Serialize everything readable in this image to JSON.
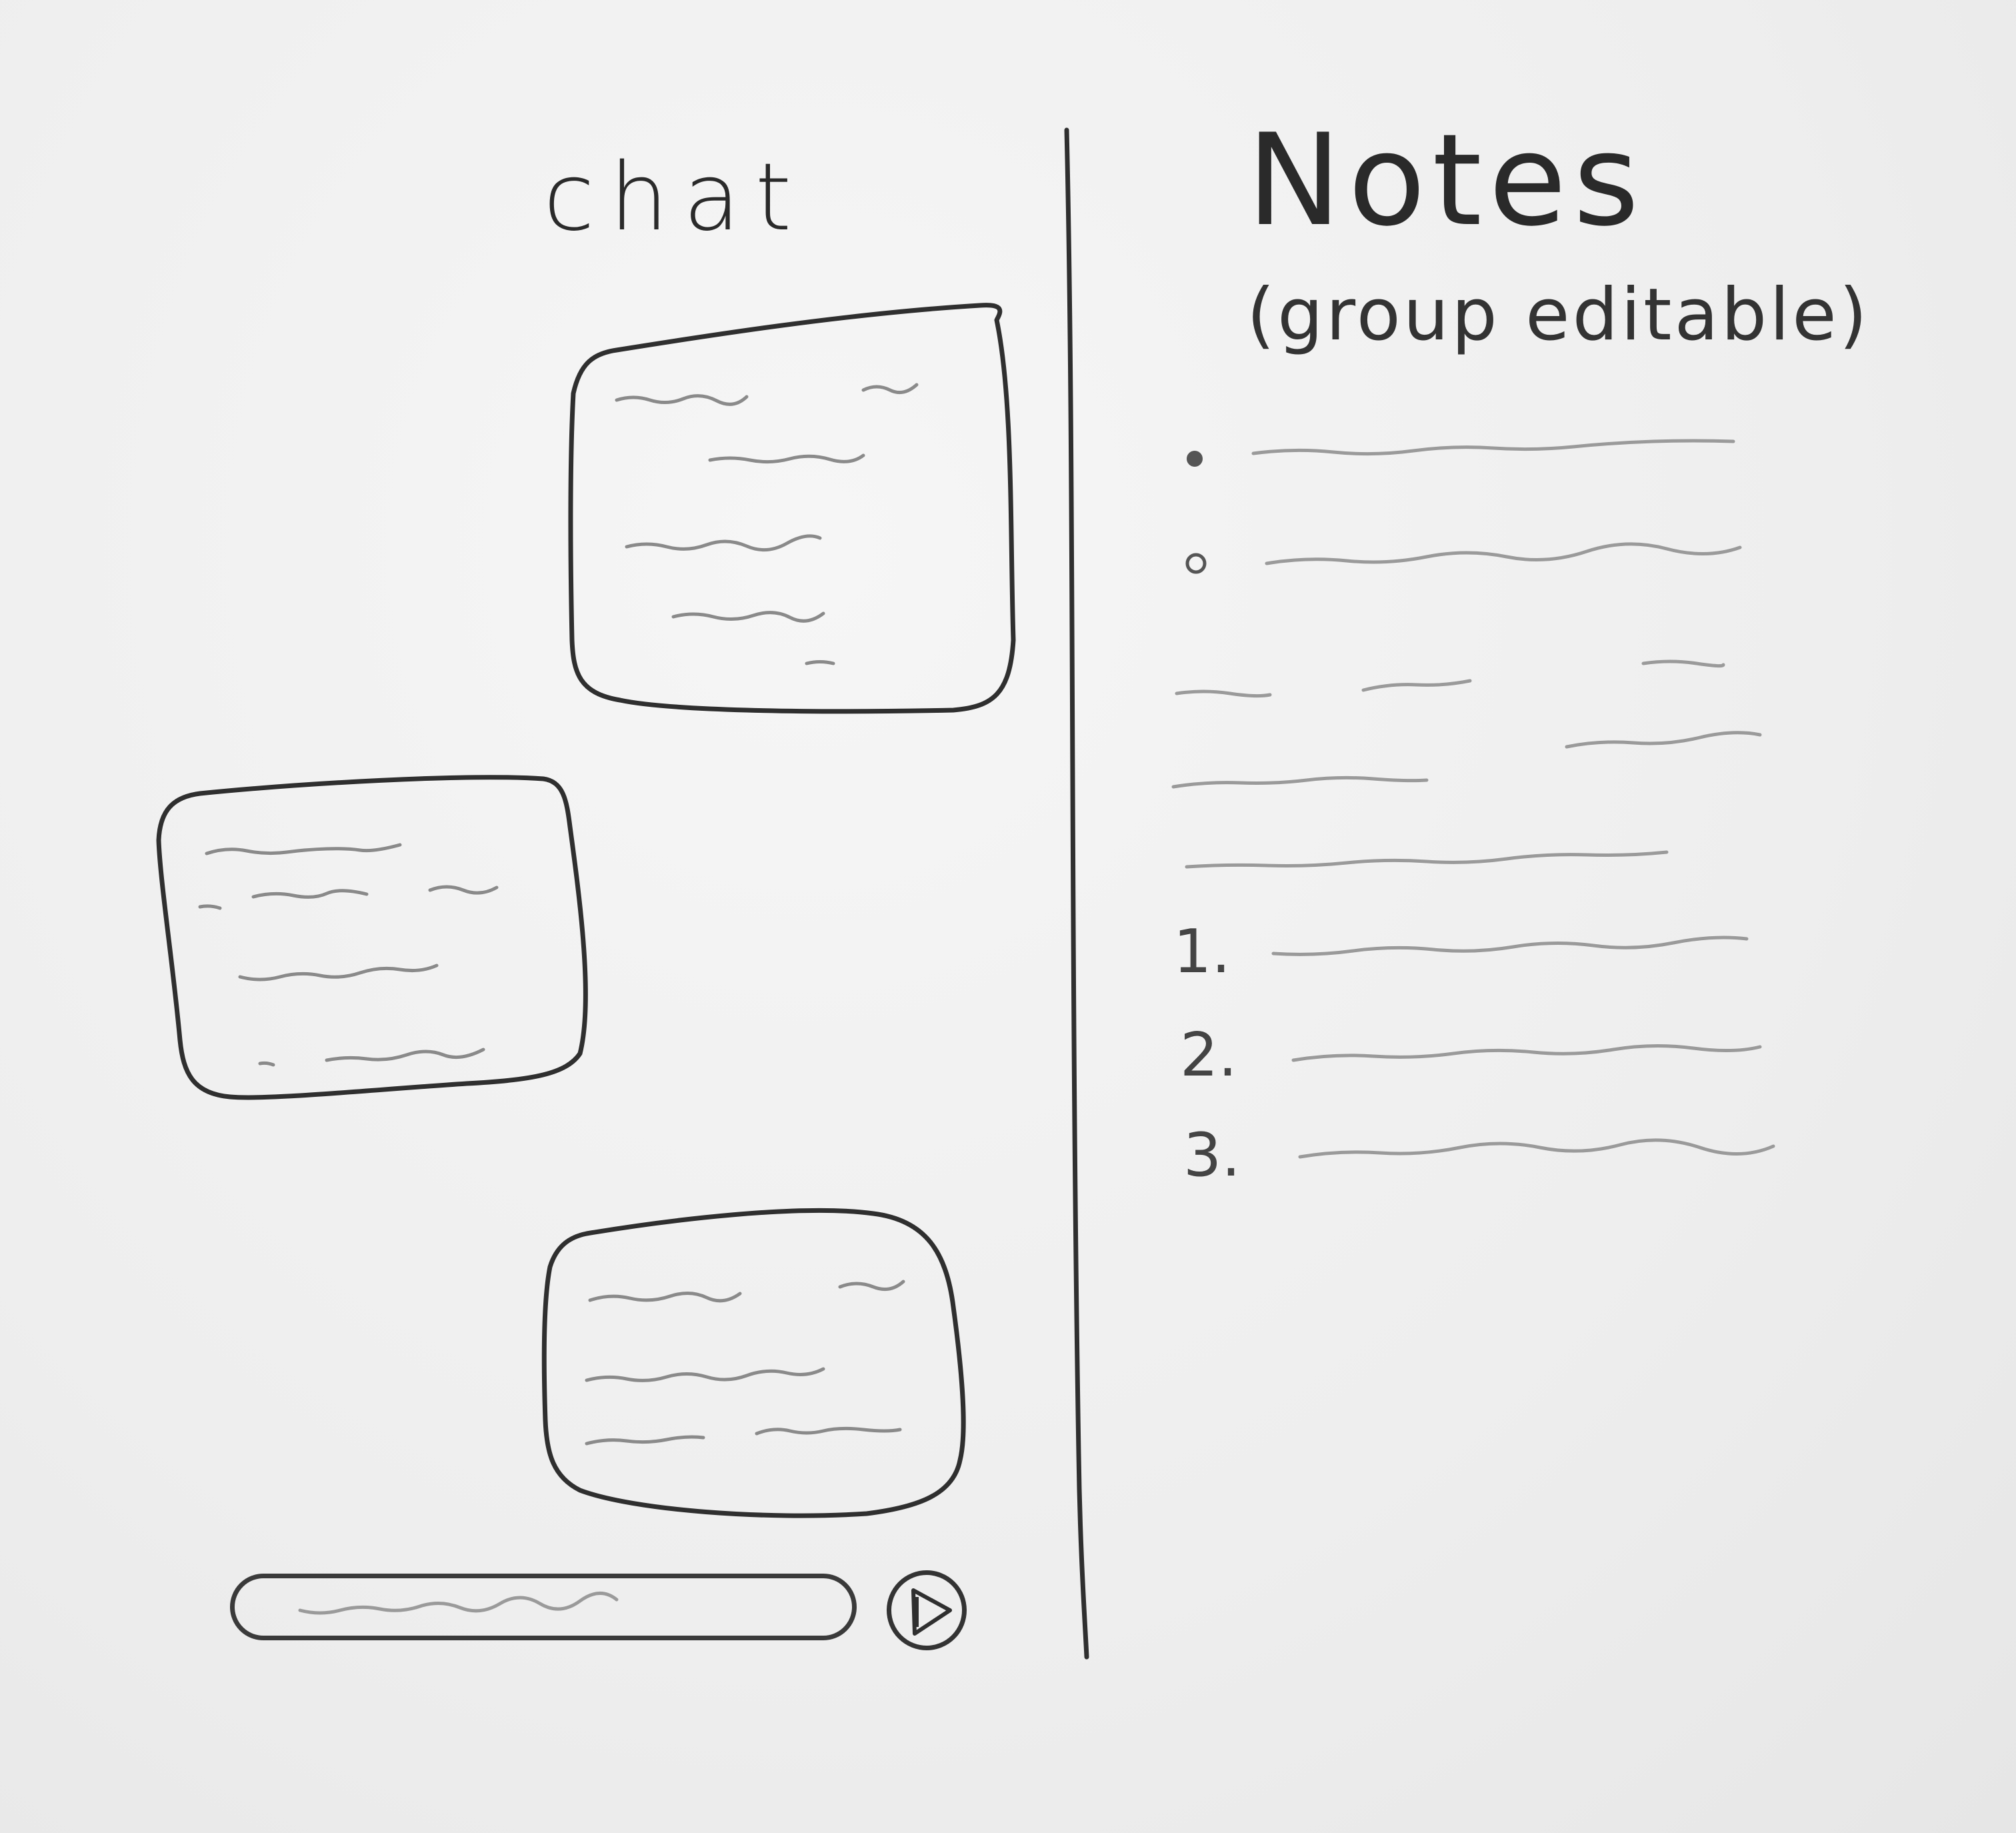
{
  "chat": {
    "title": "chat"
  },
  "notes": {
    "title": "Notes",
    "subtitle": "(group editable)",
    "numbered_markers": [
      "1.",
      "2.",
      "3."
    ]
  },
  "icons": {
    "send": "send-icon"
  },
  "colors": {
    "pencil": "#2f2f2f",
    "pencil_light": "#8e8e8e",
    "paper": "#eeeeee"
  }
}
